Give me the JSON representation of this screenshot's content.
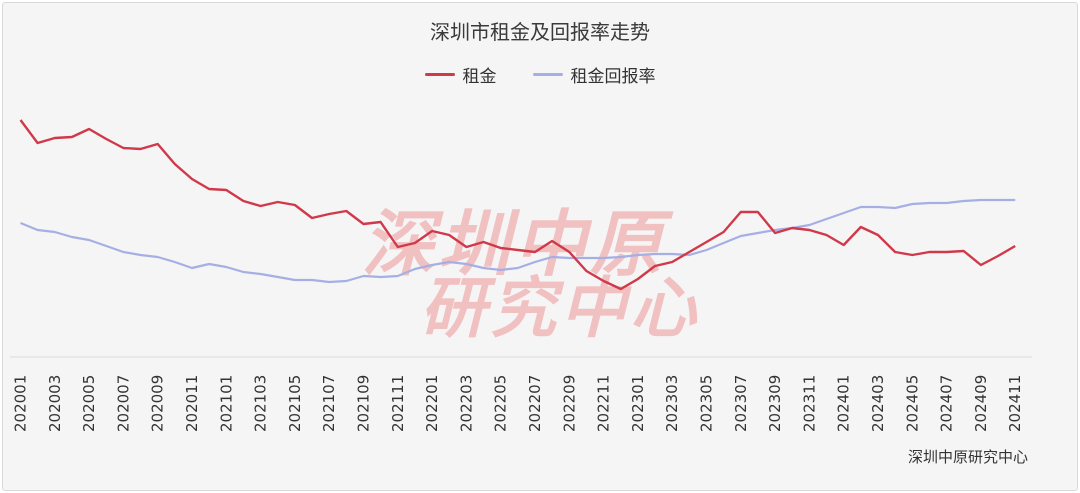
{
  "chart_data": {
    "type": "line",
    "title": "深圳市租金及回报率走势",
    "source": "深圳中原研究中心",
    "watermark": [
      "深圳中原",
      "研究中心"
    ],
    "legend_position": "top-center",
    "grid": false,
    "x": [
      "202001",
      "202002",
      "202003",
      "202004",
      "202005",
      "202006",
      "202007",
      "202008",
      "202009",
      "202010",
      "202011",
      "202012",
      "202101",
      "202102",
      "202103",
      "202104",
      "202105",
      "202106",
      "202107",
      "202108",
      "202109",
      "202110",
      "202111",
      "202112",
      "202201",
      "202202",
      "202203",
      "202204",
      "202205",
      "202206",
      "202207",
      "202208",
      "202209",
      "202210",
      "202211",
      "202212",
      "202301",
      "202302",
      "202303",
      "202304",
      "202305",
      "202306",
      "202307",
      "202308",
      "202309",
      "202310",
      "202311",
      "202312",
      "202401",
      "202402",
      "202403",
      "202404",
      "202405",
      "202406",
      "202407",
      "202408",
      "202409",
      "202410",
      "202411"
    ],
    "x_tick_labels": [
      "202001",
      "202003",
      "202005",
      "202007",
      "202009",
      "202011",
      "202101",
      "202103",
      "202105",
      "202107",
      "202109",
      "202111",
      "202201",
      "202203",
      "202205",
      "202207",
      "202209",
      "202211",
      "202301",
      "202303",
      "202305",
      "202307",
      "202309",
      "202311",
      "202401",
      "202403",
      "202405",
      "202407",
      "202409",
      "202411"
    ],
    "y_axis_shown": false,
    "series": [
      {
        "name": "租金",
        "color": "#d0394a",
        "values": [
          120,
          143,
          138,
          137,
          129,
          139,
          148,
          149,
          144,
          164,
          179,
          189,
          190,
          201,
          206,
          202,
          205,
          218,
          214,
          211,
          224,
          222,
          247,
          243,
          231,
          235,
          247,
          242,
          248,
          250,
          252,
          241,
          252,
          271,
          281,
          289,
          279,
          266,
          262,
          252,
          242,
          232,
          212,
          212,
          233,
          228,
          230,
          235,
          245,
          227,
          235,
          252,
          255,
          252,
          252,
          251,
          265,
          256,
          246
        ],
        "y_plot_range": [
          110,
          300
        ]
      },
      {
        "name": "租金回报率",
        "color": "#a6afe3",
        "values": [
          223,
          230,
          232,
          237,
          240,
          246,
          252,
          255,
          257,
          262,
          268,
          264,
          267,
          272,
          274,
          277,
          280,
          280,
          282,
          281,
          276,
          277,
          276,
          269,
          265,
          262,
          264,
          268,
          270,
          268,
          262,
          257,
          258,
          258,
          258,
          257,
          255,
          254,
          254,
          255,
          250,
          243,
          236,
          233,
          230,
          228,
          225,
          219,
          213,
          207,
          207,
          208,
          204,
          203,
          203,
          201,
          200,
          200,
          200
        ],
        "y_plot_range": [
          110,
          300
        ]
      }
    ]
  }
}
